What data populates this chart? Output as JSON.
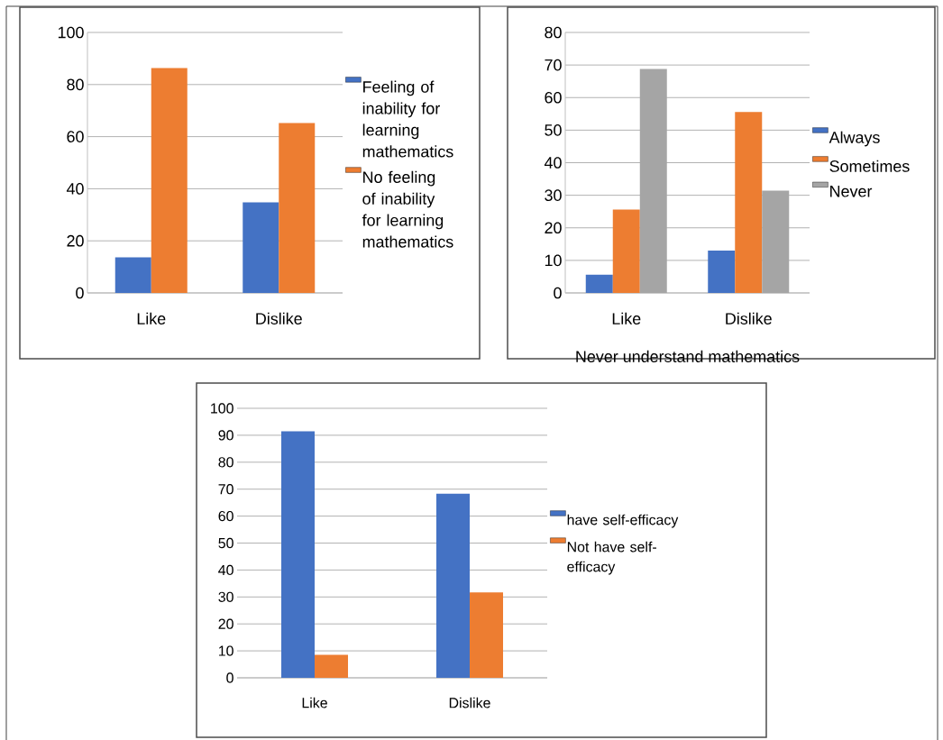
{
  "chart_data": [
    {
      "type": "bar",
      "categories": [
        "Like",
        "Dislike"
      ],
      "ylim": [
        0,
        100
      ],
      "yticks": [
        0,
        20,
        40,
        60,
        80,
        100
      ],
      "grid": "y",
      "legend": "right",
      "series": [
        {
          "name": "Feeling of inability for learning mathematics",
          "color": "#4472c4",
          "values": [
            13.7,
            34.8
          ]
        },
        {
          "name": "No feeling of inability for learning mathematics",
          "color": "#ed7d31",
          "values": [
            86.3,
            65.2
          ]
        }
      ]
    },
    {
      "type": "bar",
      "xlabel": "Never understand mathematics",
      "categories": [
        "Like",
        "Dislike"
      ],
      "ylim": [
        0,
        80
      ],
      "yticks": [
        0,
        10,
        20,
        30,
        40,
        50,
        60,
        70,
        80
      ],
      "grid": "y",
      "legend": "right",
      "series": [
        {
          "name": "Always",
          "color": "#4472c4",
          "values": [
            5.6,
            13
          ]
        },
        {
          "name": "Sometimes",
          "color": "#ed7d31",
          "values": [
            25.6,
            55.6
          ]
        },
        {
          "name": "Never",
          "color": "#a5a5a5",
          "values": [
            68.8,
            31.4
          ]
        }
      ]
    },
    {
      "type": "bar",
      "categories": [
        "Like",
        "Dislike"
      ],
      "ylim": [
        0,
        100
      ],
      "yticks": [
        0,
        10,
        20,
        30,
        40,
        50,
        60,
        70,
        80,
        90,
        100
      ],
      "grid": "y",
      "legend": "right",
      "series": [
        {
          "name": "have self-efficacy",
          "color": "#4472c4",
          "values": [
            91.5,
            68.3
          ]
        },
        {
          "name": "Not have self-efficacy",
          "color": "#ed7d31",
          "values": [
            8.5,
            31.7
          ]
        }
      ]
    }
  ]
}
